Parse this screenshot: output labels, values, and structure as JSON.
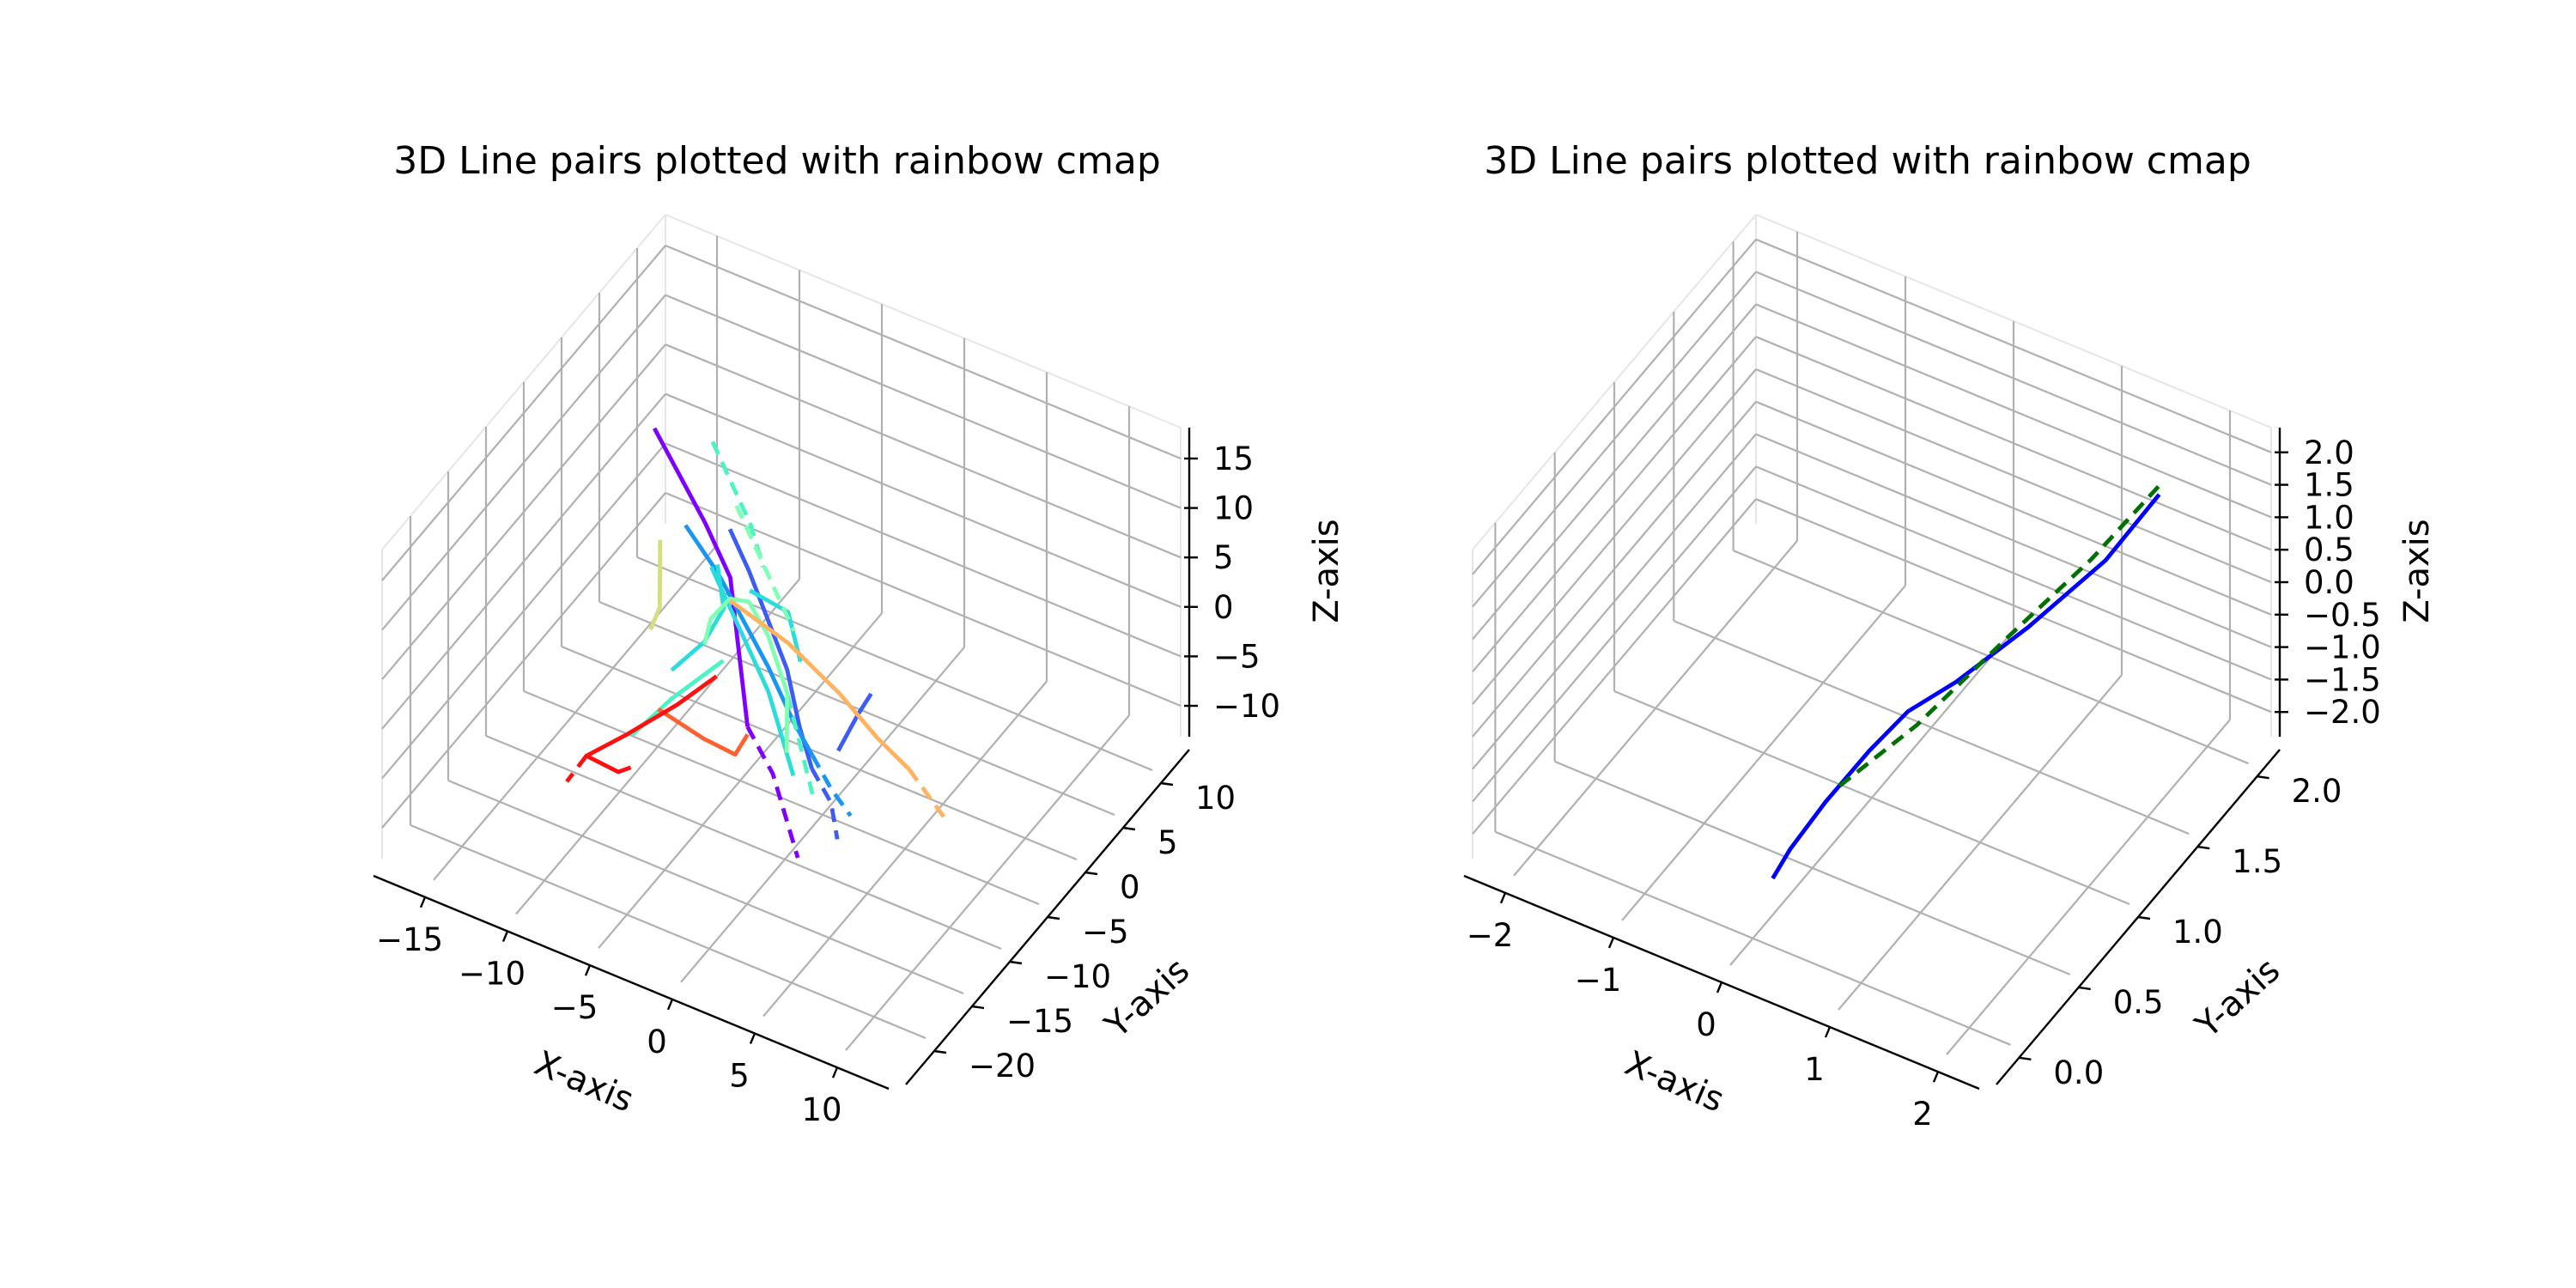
{
  "chart_data": [
    {
      "type": "line3d",
      "title": "3D Line pairs plotted with rainbow cmap",
      "xlabel": "X-axis",
      "ylabel": "Y-axis",
      "zlabel": "Z-axis",
      "x_ticks": [
        "−15",
        "−10",
        "−5",
        "0",
        "5",
        "10"
      ],
      "y_ticks": [
        "−20",
        "−15",
        "−10",
        "−5",
        "0",
        "5",
        "10"
      ],
      "z_ticks": [
        "−10",
        "−5",
        "0",
        "5",
        "10",
        "15"
      ],
      "grid": true,
      "series": [
        {
          "color": "#8000ff",
          "style": "solid",
          "points": [
            [
              -16,
              3,
              12
            ],
            [
              -13,
              1,
              10
            ],
            [
              -10,
              -1,
              8
            ],
            [
              -7,
              -3,
              5
            ],
            [
              -5,
              -6,
              3
            ],
            [
              -3,
              -9,
              1
            ],
            [
              -1,
              -12,
              -1
            ]
          ]
        },
        {
          "color": "#8000ff",
          "style": "dashed",
          "points": [
            [
              -1,
              -12,
              -1
            ],
            [
              2,
              -14,
              -3
            ],
            [
              4,
              -16,
              -5
            ],
            [
              6,
              -18,
              -7
            ]
          ]
        },
        {
          "color": "#3c5cf5",
          "style": "solid",
          "points": [
            [
              -6,
              -5,
              14
            ],
            [
              -4,
              -6,
              11
            ],
            [
              -2,
              -7,
              7
            ],
            [
              0,
              -8,
              3
            ],
            [
              2,
              -10,
              -1
            ],
            [
              4,
              -12,
              -3
            ]
          ]
        },
        {
          "color": "#3c5cf5",
          "style": "dashed",
          "points": [
            [
              4,
              -12,
              -3
            ],
            [
              6,
              -13,
              -5
            ],
            [
              7,
              -14,
              -8
            ]
          ]
        },
        {
          "color": "#3c5cf5",
          "style": "solid",
          "points": [
            [
              6,
              -7,
              3
            ],
            [
              5.5,
              -8,
              1
            ],
            [
              5,
              -10,
              -2
            ]
          ]
        },
        {
          "color": "#1996f3",
          "style": "solid",
          "points": [
            [
              -11,
              -2,
              8
            ],
            [
              -8,
              -3,
              5
            ],
            [
              -5,
              -5,
              3
            ],
            [
              -2,
              -7,
              1
            ],
            [
              1,
              -9,
              -2
            ],
            [
              3,
              -10,
              -4
            ]
          ]
        },
        {
          "color": "#1996f3",
          "style": "dashed",
          "points": [
            [
              3,
              -10,
              -4
            ],
            [
              5,
              -11,
              -6
            ],
            [
              7,
              -12,
              -7
            ]
          ]
        },
        {
          "color": "#2adddd",
          "style": "solid",
          "points": [
            [
              -9,
              -2,
              4
            ],
            [
              -7,
              -3,
              1
            ],
            [
              -5,
              -4,
              -2
            ],
            [
              -3,
              -5,
              -5
            ],
            [
              -1,
              -7,
              -7
            ],
            [
              1,
              -9,
              -9
            ]
          ]
        },
        {
          "color": "#2adddd",
          "style": "solid",
          "points": [
            [
              -8,
              -3,
              6
            ],
            [
              -7,
              -4,
              2
            ],
            [
              -8,
              -5,
              -2
            ],
            [
              -10,
              -6,
              -6
            ]
          ]
        },
        {
          "color": "#2adddd",
          "style": "solid",
          "points": [
            [
              -6,
              -2,
              3
            ],
            [
              -4,
              -3,
              4
            ],
            [
              -2,
              -4,
              5
            ],
            [
              0,
              -6,
              2
            ]
          ]
        },
        {
          "color": "#4df2c5",
          "style": "solid",
          "points": [
            [
              -6,
              -6,
              -2
            ],
            [
              -9,
              -8,
              -7
            ],
            [
              -11,
              -10,
              -11
            ]
          ]
        },
        {
          "color": "#4df2c5",
          "style": "dashed",
          "points": [
            [
              -12,
              4,
              12
            ],
            [
              -10,
              3,
              9
            ],
            [
              -8,
              2,
              6
            ],
            [
              -6,
              0,
              4
            ]
          ]
        },
        {
          "color": "#4df2c5",
          "style": "dashed",
          "points": [
            [
              -1,
              -6,
              -3
            ],
            [
              1,
              -8,
              -6
            ],
            [
              3,
              -10,
              -9
            ]
          ]
        },
        {
          "color": "#80ffb4",
          "style": "solid",
          "points": [
            [
              -9,
              -3,
              -5
            ],
            [
              -8,
              -4,
              0
            ],
            [
              -6,
              -5,
              5
            ],
            [
              -4,
              -6,
              7
            ],
            [
              -2,
              -7,
              5
            ],
            [
              0,
              -8,
              0
            ],
            [
              1,
              -10,
              -5
            ]
          ]
        },
        {
          "color": "#80ffb4",
          "style": "dashed",
          "points": [
            [
              -6,
              -4,
              16
            ],
            [
              -4,
              -5,
              13
            ],
            [
              -2,
              -6,
              10
            ],
            [
              0,
              -7,
              7
            ]
          ]
        },
        {
          "color": "#d4dd80",
          "style": "solid",
          "points": [
            [
              -14,
              0,
              2
            ],
            [
              -13.5,
              -1,
              -1
            ],
            [
              -13,
              -2,
              -4
            ],
            [
              -13.2,
              -3,
              -6
            ]
          ]
        },
        {
          "color": "#ffb360",
          "style": "solid",
          "points": [
            [
              -7,
              -3,
              2
            ],
            [
              -2,
              -4,
              1
            ],
            [
              3,
              -6,
              0
            ],
            [
              7,
              -8,
              -1
            ],
            [
              10,
              -9,
              -2
            ]
          ]
        },
        {
          "color": "#ffb360",
          "style": "dashed",
          "points": [
            [
              10,
              -9,
              -2
            ],
            [
              12,
              -10,
              -3
            ],
            [
              14,
              -11,
              -4
            ]
          ]
        },
        {
          "color": "#ff6030",
          "style": "solid",
          "points": [
            [
              -10,
              -8,
              -9
            ],
            [
              -6,
              -9,
              -9
            ],
            [
              -3,
              -10,
              -8
            ],
            [
              -2,
              -11,
              -5
            ],
            [
              -1,
              -12,
              -2
            ]
          ]
        },
        {
          "color": "#ff1010",
          "style": "solid",
          "points": [
            [
              -6,
              -7,
              -3
            ],
            [
              -8,
              -9,
              -6
            ],
            [
              -11,
              -11,
              -10
            ],
            [
              -13,
              -13,
              -12
            ],
            [
              -10,
              -14,
              -11
            ],
            [
              -8,
              -16,
              -7
            ]
          ]
        },
        {
          "color": "#ff1010",
          "style": "dashed",
          "points": [
            [
              -13,
              -13,
              -12
            ],
            [
              -14,
              -14,
              -15
            ]
          ]
        }
      ]
    },
    {
      "type": "line3d",
      "title": "3D Line pairs plotted with rainbow cmap",
      "xlabel": "X-axis",
      "ylabel": "Y-axis",
      "zlabel": "Z-axis",
      "x_ticks": [
        "−2",
        "−1",
        "0",
        "1",
        "2"
      ],
      "y_ticks": [
        "0.0",
        "0.5",
        "1.0",
        "1.5",
        "2.0"
      ],
      "z_ticks": [
        "−2.0",
        "−1.5",
        "−1.0",
        "−0.5",
        "0.0",
        "0.5",
        "1.0",
        "1.5",
        "2.0"
      ],
      "grid": true,
      "series": [
        {
          "color": "#0000ff",
          "style": "solid",
          "points": [
            [
              0,
              0,
              -2
            ],
            [
              0.1,
              0.08,
              -1.6
            ],
            [
              0.3,
              0.25,
              -1
            ],
            [
              0.5,
              0.5,
              -0.5
            ],
            [
              0.7,
              0.7,
              -0.1
            ],
            [
              1.0,
              0.9,
              0.2
            ],
            [
              1.4,
              1.25,
              0.7
            ],
            [
              1.8,
              1.65,
              1.3
            ],
            [
              2.0,
              2.0,
              1.85
            ]
          ]
        },
        {
          "color": "#007000",
          "style": "dashed",
          "points": [
            [
              0.5,
              0.2,
              -0.5
            ],
            [
              0.9,
              0.6,
              0.0
            ],
            [
              1.3,
              1.1,
              0.7
            ],
            [
              1.7,
              1.6,
              1.35
            ],
            [
              2.0,
              2.0,
              2.0
            ]
          ]
        }
      ]
    }
  ]
}
